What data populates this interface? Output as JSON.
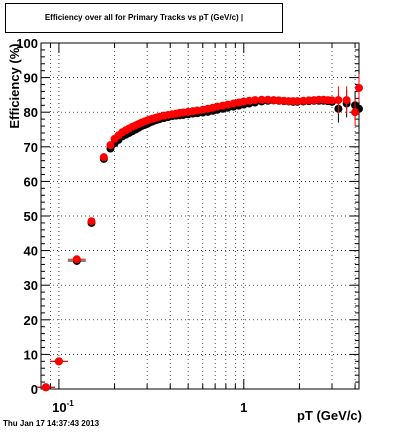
{
  "chart_data": {
    "type": "scatter",
    "title": "Efficiency over all for Primary Tracks vs pT (GeV/c) |",
    "xlabel": "pT (GeV/c)",
    "ylabel": "Efficiency (%)",
    "xscale": "log",
    "xlim": [
      0.08,
      4.2
    ],
    "ylim": [
      0,
      100
    ],
    "grid": true,
    "y_ticks": [
      "0",
      "10",
      "20",
      "30",
      "40",
      "50",
      "60",
      "70",
      "80",
      "90",
      "100"
    ],
    "x_tick_labels": [
      {
        "value": 0.1,
        "base": "10",
        "exp": "-1"
      },
      {
        "value": 1,
        "base": "1",
        "exp": ""
      }
    ],
    "series": [
      {
        "color": "#000000",
        "x": [
          0.085,
          0.1,
          0.125,
          0.15,
          0.175,
          0.19,
          0.2,
          0.21,
          0.22,
          0.23,
          0.24,
          0.25,
          0.26,
          0.27,
          0.28,
          0.29,
          0.3,
          0.31,
          0.32,
          0.33,
          0.34,
          0.35,
          0.37,
          0.39,
          0.41,
          0.43,
          0.45,
          0.47,
          0.5,
          0.53,
          0.56,
          0.6,
          0.64,
          0.68,
          0.72,
          0.77,
          0.82,
          0.88,
          0.94,
          1.0,
          1.07,
          1.15,
          1.25,
          1.35,
          1.45,
          1.55,
          1.65,
          1.75,
          1.85,
          1.95,
          2.1,
          2.25,
          2.4,
          2.55,
          2.7,
          2.85,
          3.0,
          3.25,
          3.6,
          4.0,
          4.2
        ],
        "y": [
          0.5,
          8,
          37,
          48,
          66.5,
          69.5,
          71,
          72,
          73,
          73.5,
          74,
          74.5,
          75,
          75.5,
          76,
          76.3,
          76.6,
          77,
          77.3,
          77.6,
          77.8,
          78,
          78.3,
          78.6,
          78.9,
          79,
          79.1,
          79.2,
          79.4,
          79.6,
          79.7,
          79.9,
          80.1,
          80.4,
          80.7,
          81,
          81.3,
          81.6,
          81.9,
          82.2,
          82.5,
          82.8,
          83.1,
          83.3,
          83.4,
          83.3,
          83.2,
          83.1,
          83.0,
          83.0,
          83.1,
          83.2,
          83.3,
          83.3,
          83.3,
          83.2,
          83.0,
          81,
          82.5,
          82,
          81
        ]
      },
      {
        "color": "#ff0000",
        "x": [
          0.085,
          0.1,
          0.125,
          0.15,
          0.175,
          0.19,
          0.2,
          0.21,
          0.22,
          0.23,
          0.24,
          0.25,
          0.26,
          0.27,
          0.28,
          0.29,
          0.3,
          0.31,
          0.32,
          0.33,
          0.34,
          0.35,
          0.37,
          0.39,
          0.41,
          0.43,
          0.45,
          0.47,
          0.5,
          0.53,
          0.56,
          0.6,
          0.64,
          0.68,
          0.72,
          0.77,
          0.82,
          0.88,
          0.94,
          1.0,
          1.07,
          1.15,
          1.25,
          1.35,
          1.45,
          1.55,
          1.65,
          1.75,
          1.85,
          1.95,
          2.1,
          2.25,
          2.4,
          2.55,
          2.7,
          2.85,
          3.0,
          3.25,
          3.6,
          4.0,
          4.2
        ],
        "y": [
          0.5,
          8,
          37.5,
          48.5,
          67,
          70.5,
          72.3,
          73.3,
          74.2,
          74.8,
          75.3,
          75.8,
          76.2,
          76.6,
          77,
          77.3,
          77.6,
          77.9,
          78.1,
          78.3,
          78.5,
          78.7,
          79,
          79.2,
          79.4,
          79.6,
          79.8,
          79.9,
          80.1,
          80.3,
          80.5,
          80.7,
          81,
          81.3,
          81.6,
          81.9,
          82.2,
          82.5,
          82.8,
          83.1,
          83.3,
          83.5,
          83.6,
          83.6,
          83.5,
          83.4,
          83.3,
          83.2,
          83.2,
          83.2,
          83.3,
          83.4,
          83.5,
          83.6,
          83.6,
          83.5,
          83.4,
          83.5,
          83.5,
          80,
          87
        ]
      }
    ]
  },
  "footer": "Thu Jan 17 14:37:43 2013"
}
